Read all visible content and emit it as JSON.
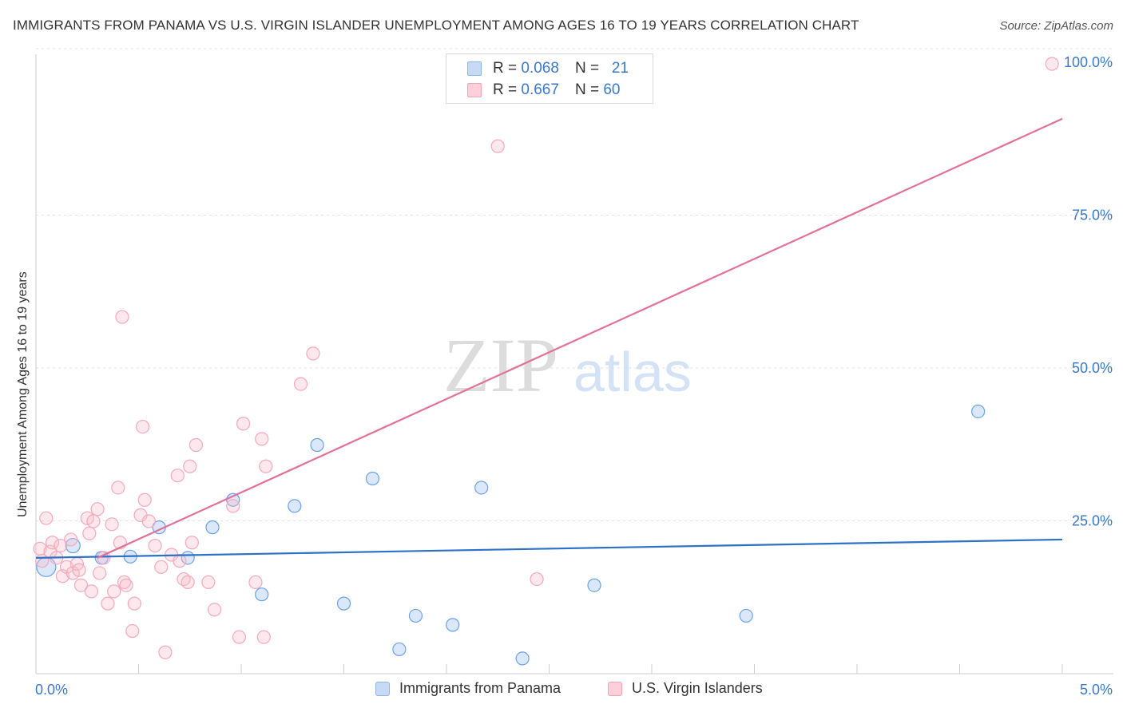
{
  "title": "IMMIGRANTS FROM PANAMA VS U.S. VIRGIN ISLANDER UNEMPLOYMENT AMONG AGES 16 TO 19 YEARS CORRELATION CHART",
  "source": "Source: ZipAtlas.com",
  "watermark": {
    "zip": "ZIP",
    "atlas": "atlas"
  },
  "legend": {
    "r_label": "R =",
    "n_label": "N =",
    "entries": [
      {
        "r": "0.068",
        "n": "21",
        "color": "#aecbf2"
      },
      {
        "r": "0.667",
        "n": "60",
        "color": "#f7bccb"
      }
    ]
  },
  "chart_data": {
    "type": "scatter",
    "title": "IMMIGRANTS FROM PANAMA VS U.S. VIRGIN ISLANDER UNEMPLOYMENT AMONG AGES 16 TO 19 YEARS CORRELATION CHART",
    "xlabel": "",
    "ylabel": "Unemployment Among Ages 16 to 19 years",
    "xlim": [
      0,
      5
    ],
    "ylim": [
      0,
      100
    ],
    "x_tick_labels": [
      "0.0%",
      "5.0%"
    ],
    "y_tick_labels": [
      "25.0%",
      "50.0%",
      "75.0%",
      "100.0%"
    ],
    "y_ticks": [
      25,
      50,
      75,
      100
    ],
    "grid": true,
    "legend_position": "top-center",
    "series": [
      {
        "name": "Immigrants from Panama",
        "color": "#6aa2e6",
        "trend": {
          "r": 0.068,
          "n": 21,
          "line": [
            [
              0,
              19.0
            ],
            [
              5,
              22.0
            ]
          ],
          "color": "#2e72c8"
        },
        "points": [
          [
            0.05,
            17.5,
            12
          ],
          [
            0.18,
            21.0,
            9
          ],
          [
            0.32,
            19.0,
            8
          ],
          [
            0.46,
            19.2,
            8
          ],
          [
            0.6,
            24.0,
            8
          ],
          [
            0.74,
            19.0,
            8
          ],
          [
            0.86,
            24.0,
            8
          ],
          [
            0.96,
            28.5,
            8
          ],
          [
            1.1,
            13.0,
            8
          ],
          [
            1.26,
            27.5,
            8
          ],
          [
            1.37,
            37.5,
            8
          ],
          [
            1.5,
            11.5,
            8
          ],
          [
            1.64,
            32.0,
            8
          ],
          [
            1.77,
            4.0,
            8
          ],
          [
            1.85,
            9.5,
            8
          ],
          [
            2.03,
            8.0,
            8
          ],
          [
            2.17,
            30.5,
            8
          ],
          [
            2.37,
            2.5,
            8
          ],
          [
            2.72,
            14.5,
            8
          ],
          [
            3.46,
            9.5,
            8
          ],
          [
            4.59,
            43.0,
            8
          ]
        ]
      },
      {
        "name": "U.S. Virgin Islanders",
        "color": "#f3a9bd",
        "trend": {
          "r": 0.667,
          "n": 60,
          "line": [
            [
              0.3,
              19.0
            ],
            [
              5.0,
              91.0
            ]
          ],
          "color": "#e2719a"
        },
        "points": [
          [
            0.02,
            20.5
          ],
          [
            0.03,
            18.5
          ],
          [
            0.05,
            25.5
          ],
          [
            0.07,
            20.0
          ],
          [
            0.08,
            21.5
          ],
          [
            0.1,
            19.0
          ],
          [
            0.12,
            21.0
          ],
          [
            0.13,
            16.0
          ],
          [
            0.15,
            17.5
          ],
          [
            0.17,
            22.0
          ],
          [
            0.18,
            16.5
          ],
          [
            0.2,
            18.0
          ],
          [
            0.21,
            17.0
          ],
          [
            0.22,
            14.5
          ],
          [
            0.25,
            25.5
          ],
          [
            0.26,
            23.0
          ],
          [
            0.27,
            13.5
          ],
          [
            0.28,
            25.0
          ],
          [
            0.3,
            27.0
          ],
          [
            0.31,
            16.5
          ],
          [
            0.33,
            19.0
          ],
          [
            0.35,
            11.5
          ],
          [
            0.37,
            24.5
          ],
          [
            0.38,
            13.5
          ],
          [
            0.4,
            30.5
          ],
          [
            0.41,
            21.5
          ],
          [
            0.43,
            15.0
          ],
          [
            0.44,
            14.5
          ],
          [
            0.47,
            7.0
          ],
          [
            0.48,
            11.5
          ],
          [
            0.51,
            26.0
          ],
          [
            0.53,
            28.5
          ],
          [
            0.55,
            25.0
          ],
          [
            0.58,
            21.0
          ],
          [
            0.42,
            58.5
          ],
          [
            0.52,
            40.5
          ],
          [
            0.61,
            17.5
          ],
          [
            0.63,
            3.5
          ],
          [
            0.66,
            19.5
          ],
          [
            0.69,
            32.5
          ],
          [
            0.7,
            18.5
          ],
          [
            0.72,
            15.5
          ],
          [
            0.74,
            15.0
          ],
          [
            0.75,
            34.0
          ],
          [
            0.76,
            21.5
          ],
          [
            0.78,
            37.5
          ],
          [
            0.84,
            15.0
          ],
          [
            0.87,
            10.5
          ],
          [
            0.96,
            27.5
          ],
          [
            0.99,
            6.0
          ],
          [
            1.01,
            41.0
          ],
          [
            1.07,
            15.0
          ],
          [
            1.1,
            38.5
          ],
          [
            1.11,
            6.0
          ],
          [
            1.12,
            34.0
          ],
          [
            1.29,
            47.5
          ],
          [
            1.35,
            52.5
          ],
          [
            2.25,
            86.5
          ],
          [
            2.44,
            15.5
          ],
          [
            4.95,
            100.0
          ]
        ]
      }
    ]
  }
}
